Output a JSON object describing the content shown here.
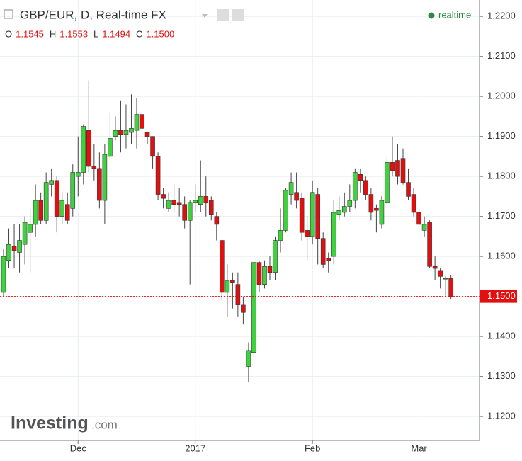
{
  "chart_data": {
    "type": "candlestick",
    "title": "GBP/EUR, D, Real-time FX",
    "ohlc_labels": [
      {
        "key": "O",
        "value": "1.1545"
      },
      {
        "key": "H",
        "value": "1.1553"
      },
      {
        "key": "L",
        "value": "1.1494"
      },
      {
        "key": "C",
        "value": "1.1500"
      }
    ],
    "status": "realtime",
    "logo": {
      "main": "Investing",
      "suffix": ".com"
    },
    "up_color": "#3fd13f",
    "down_color": "#e30f0f",
    "grid": true,
    "ylim": [
      1.114,
      1.2241
    ],
    "yticks": [
      {
        "value": 1.12,
        "label": "1.1200"
      },
      {
        "value": 1.13,
        "label": "1.1300"
      },
      {
        "value": 1.14,
        "label": "1.1400"
      },
      {
        "value": 1.15,
        "label": "1.1500"
      },
      {
        "value": 1.16,
        "label": "1.1600"
      },
      {
        "value": 1.17,
        "label": "1.1700"
      },
      {
        "value": 1.18,
        "label": "1.1800"
      },
      {
        "value": 1.19,
        "label": "1.1900"
      },
      {
        "value": 1.2,
        "label": "1.2000"
      },
      {
        "value": 1.21,
        "label": "1.2100"
      },
      {
        "value": 1.22,
        "label": "1.2200"
      }
    ],
    "last_price": {
      "value": 1.15,
      "label": "1.1500"
    },
    "categories": [
      null,
      null,
      null,
      null,
      null,
      null,
      null,
      null,
      null,
      null,
      null,
      null,
      null,
      null,
      "Dec",
      null,
      null,
      null,
      null,
      null,
      null,
      null,
      null,
      null,
      null,
      null,
      null,
      null,
      null,
      null,
      null,
      null,
      null,
      null,
      null,
      null,
      "2017",
      null,
      null,
      null,
      null,
      null,
      null,
      null,
      null,
      null,
      null,
      null,
      null,
      null,
      null,
      null,
      null,
      null,
      null,
      null,
      null,
      null,
      "Feb",
      null,
      null,
      null,
      null,
      null,
      null,
      null,
      null,
      null,
      null,
      null,
      null,
      null,
      null,
      null,
      null,
      null,
      null,
      null,
      "Mar",
      null,
      null,
      null,
      null,
      null,
      null
    ],
    "open": [
      1.151,
      1.159,
      1.1625,
      1.161,
      1.163,
      1.166,
      1.168,
      1.174,
      1.169,
      1.178,
      1.179,
      1.17,
      1.173,
      1.172,
      1.18,
      1.181,
      1.1915,
      1.1825,
      1.182,
      1.174,
      1.185,
      1.19,
      1.1915,
      1.1905,
      1.191,
      1.1915,
      1.1955,
      1.191,
      1.19,
      1.185,
      1.1755,
      1.172,
      1.174,
      1.1735,
      1.173,
      1.169,
      1.1735,
      1.173,
      1.175,
      1.174,
      1.17,
      1.164,
      1.151,
      1.154,
      1.153,
      1.148,
      1.1325,
      1.136,
      1.1585,
      1.153,
      1.1575,
      1.156,
      1.164,
      1.1665,
      1.1755,
      1.176,
      1.1745,
      1.1665,
      1.165,
      1.1755,
      1.1645,
      1.1595,
      1.16,
      1.1705,
      1.171,
      1.1725,
      1.174,
      1.1805,
      1.179,
      1.1755,
      1.172,
      1.168,
      1.1735,
      1.1835,
      1.184,
      1.1845,
      1.1785,
      1.1755,
      1.171,
      1.1665,
      1.1685,
      1.1575,
      1.1565,
      1.1545,
      1.1545
    ],
    "high": [
      1.162,
      1.167,
      1.168,
      1.168,
      1.17,
      1.172,
      1.178,
      1.176,
      1.181,
      1.182,
      1.18,
      1.176,
      1.176,
      1.183,
      1.19,
      1.193,
      1.204,
      1.188,
      1.186,
      1.188,
      1.196,
      1.195,
      1.199,
      1.198,
      1.2005,
      1.1995,
      1.196,
      1.191,
      1.19,
      1.186,
      1.177,
      1.176,
      1.178,
      1.177,
      1.175,
      1.174,
      1.178,
      1.184,
      1.18,
      1.175,
      1.171,
      1.164,
      1.158,
      1.156,
      1.156,
      1.15,
      1.1385,
      1.159,
      1.159,
      1.159,
      1.16,
      1.165,
      1.172,
      1.177,
      1.181,
      1.181,
      1.176,
      1.17,
      1.179,
      1.177,
      1.166,
      1.161,
      1.174,
      1.175,
      1.176,
      1.178,
      1.182,
      1.182,
      1.18,
      1.177,
      1.173,
      1.175,
      1.185,
      1.19,
      1.188,
      1.187,
      1.182,
      1.177,
      1.172,
      1.17,
      1.169,
      1.16,
      1.157,
      1.155,
      1.1553
    ],
    "low": [
      1.15,
      1.157,
      1.157,
      1.156,
      1.158,
      1.156,
      1.165,
      1.168,
      1.168,
      1.175,
      1.166,
      1.168,
      1.168,
      1.17,
      1.175,
      1.178,
      1.181,
      1.179,
      1.172,
      1.168,
      1.184,
      1.189,
      1.186,
      1.187,
      1.188,
      1.187,
      1.188,
      1.188,
      1.182,
      1.174,
      1.172,
      1.171,
      1.171,
      1.17,
      1.167,
      1.153,
      1.171,
      1.171,
      1.17,
      1.169,
      1.164,
      1.149,
      1.145,
      1.147,
      1.145,
      1.143,
      1.1285,
      1.135,
      1.151,
      1.152,
      1.154,
      1.154,
      1.161,
      1.166,
      1.173,
      1.172,
      1.164,
      1.159,
      1.163,
      1.158,
      1.157,
      1.156,
      1.158,
      1.169,
      1.17,
      1.171,
      1.172,
      1.176,
      1.174,
      1.169,
      1.166,
      1.167,
      1.172,
      1.18,
      1.178,
      1.178,
      1.174,
      1.17,
      1.166,
      1.165,
      1.157,
      1.154,
      1.152,
      1.15,
      1.1494
    ],
    "close": [
      1.16,
      1.163,
      1.1615,
      1.164,
      1.1685,
      1.168,
      1.174,
      1.169,
      1.1785,
      1.179,
      1.17,
      1.174,
      1.169,
      1.181,
      1.181,
      1.1925,
      1.1825,
      1.182,
      1.174,
      1.1855,
      1.1895,
      1.1915,
      1.1905,
      1.1915,
      1.192,
      1.1955,
      1.192,
      1.19,
      1.185,
      1.1755,
      1.1745,
      1.174,
      1.173,
      1.173,
      1.169,
      1.1735,
      1.174,
      1.175,
      1.1735,
      1.1705,
      1.168,
      1.151,
      1.154,
      1.1535,
      1.148,
      1.146,
      1.1365,
      1.1585,
      1.153,
      1.1575,
      1.156,
      1.164,
      1.1665,
      1.1765,
      1.1785,
      1.174,
      1.166,
      1.165,
      1.176,
      1.1645,
      1.158,
      1.159,
      1.171,
      1.1715,
      1.1725,
      1.174,
      1.181,
      1.179,
      1.1755,
      1.171,
      1.1715,
      1.174,
      1.1835,
      1.1815,
      1.18,
      1.1785,
      1.175,
      1.171,
      1.168,
      1.168,
      1.1575,
      1.157,
      1.155,
      1.1545,
      1.15
    ]
  }
}
